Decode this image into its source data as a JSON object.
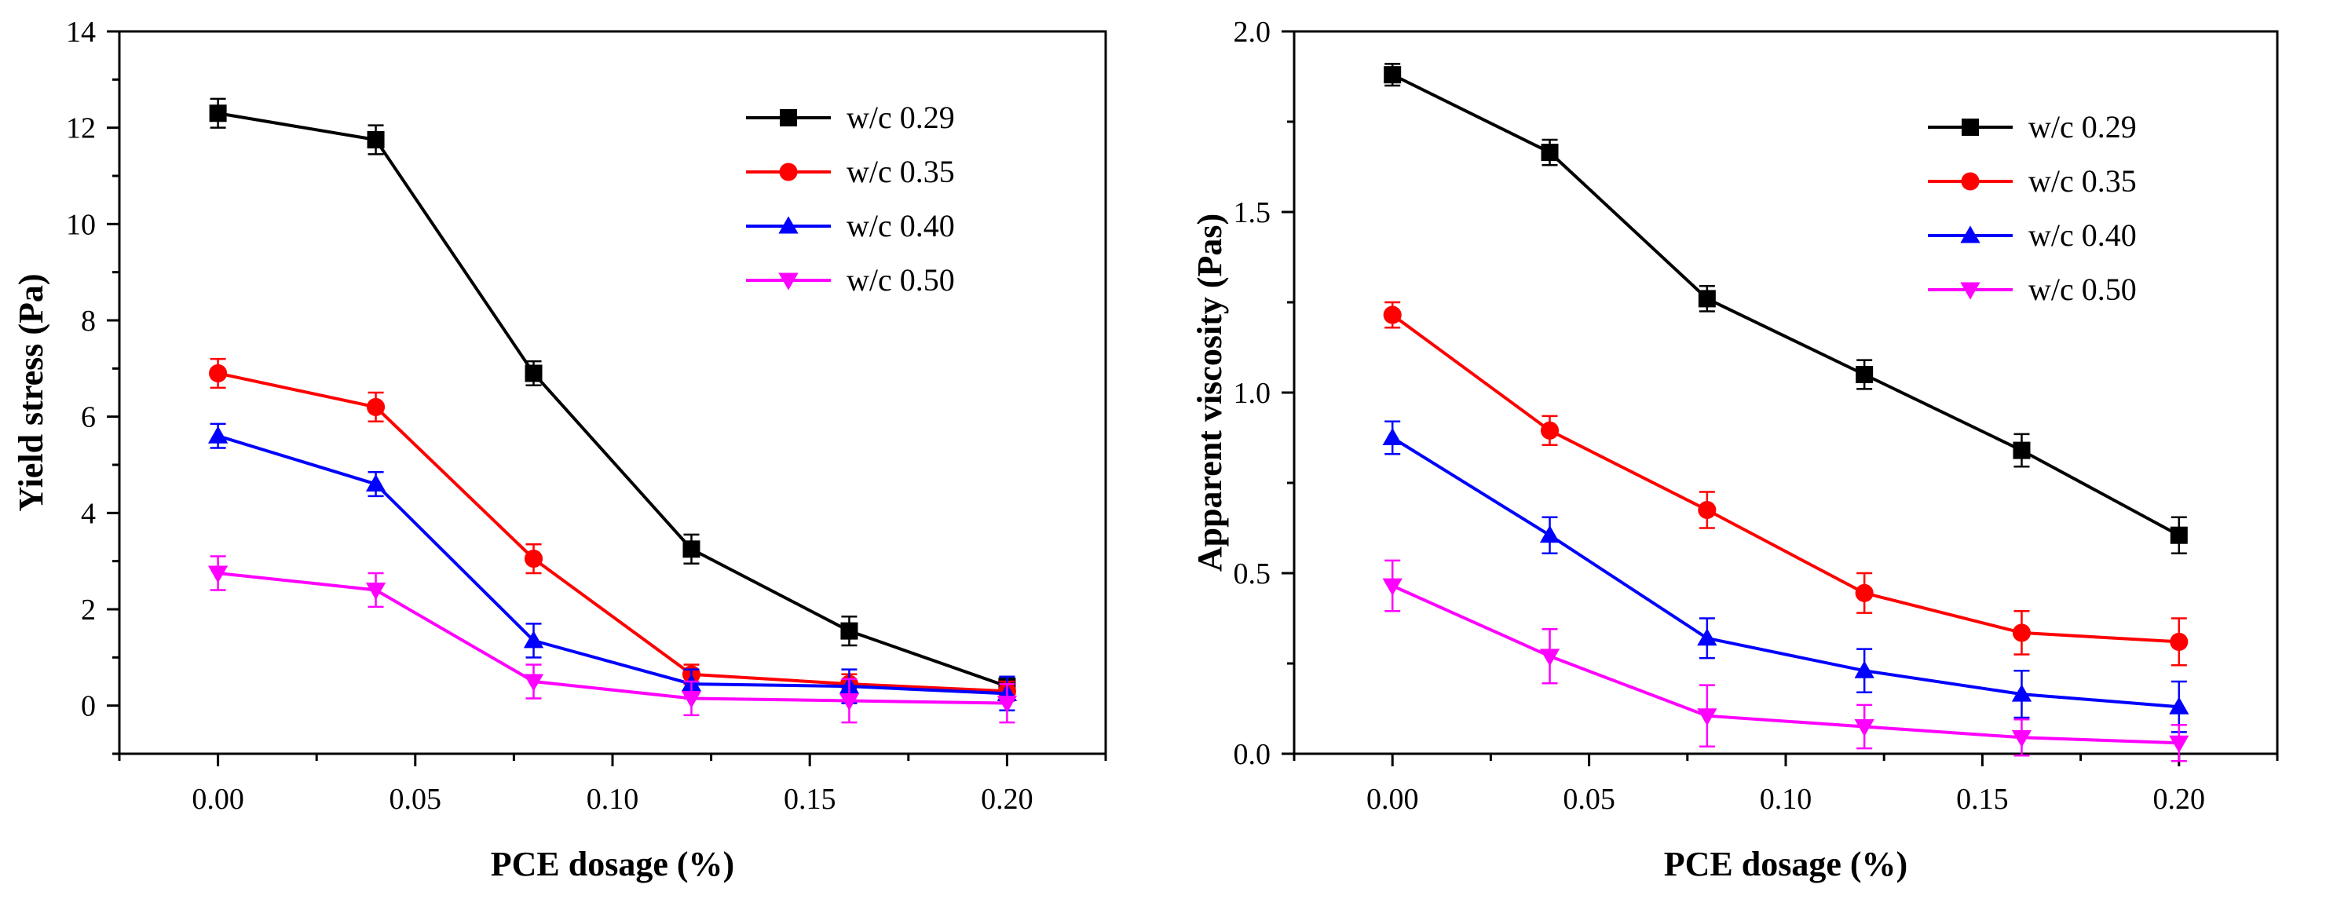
{
  "chart_data": [
    {
      "type": "line",
      "title": "",
      "xlabel": "PCE dosage (%)",
      "ylabel": "Yield stress (Pa)",
      "xlim": [
        -0.025,
        0.225
      ],
      "ylim": [
        -1,
        14
      ],
      "xticks": [
        0.0,
        0.05,
        0.1,
        0.15,
        0.2
      ],
      "xtick_labels": [
        "0.00",
        "0.05",
        "0.10",
        "0.15",
        "0.20"
      ],
      "yticks": [
        0,
        2,
        4,
        6,
        8,
        10,
        12,
        14
      ],
      "ytick_labels": [
        "0",
        "2",
        "4",
        "6",
        "8",
        "10",
        "12",
        "14"
      ],
      "legend_position": "top-right",
      "x": [
        0.0,
        0.04,
        0.08,
        0.12,
        0.16,
        0.2
      ],
      "series": [
        {
          "name": "w/c 0.29",
          "color": "#000000",
          "marker": "square",
          "values": [
            12.3,
            11.75,
            6.9,
            3.25,
            1.55,
            0.4
          ],
          "errors": [
            0.3,
            0.3,
            0.25,
            0.3,
            0.3,
            0.2
          ]
        },
        {
          "name": "w/c 0.35",
          "color": "#ff0000",
          "marker": "circle",
          "values": [
            6.9,
            6.2,
            3.05,
            0.65,
            0.45,
            0.3
          ],
          "errors": [
            0.3,
            0.3,
            0.3,
            0.2,
            0.2,
            0.2
          ]
        },
        {
          "name": "w/c 0.40",
          "color": "#0000ff",
          "marker": "triangle-up",
          "values": [
            5.6,
            4.6,
            1.35,
            0.45,
            0.4,
            0.25
          ],
          "errors": [
            0.25,
            0.25,
            0.35,
            0.3,
            0.35,
            0.35
          ]
        },
        {
          "name": "w/c 0.50",
          "color": "#ff00ff",
          "marker": "triangle-down",
          "values": [
            2.75,
            2.4,
            0.5,
            0.15,
            0.1,
            0.05
          ],
          "errors": [
            0.35,
            0.35,
            0.35,
            0.35,
            0.45,
            0.4
          ]
        }
      ]
    },
    {
      "type": "line",
      "title": "",
      "xlabel": "PCE dosage (%)",
      "ylabel": "Apparent viscosity (Pas)",
      "xlim": [
        -0.025,
        0.225
      ],
      "ylim": [
        0,
        2.0
      ],
      "xticks": [
        0.0,
        0.05,
        0.1,
        0.15,
        0.2
      ],
      "xtick_labels": [
        "0.00",
        "0.05",
        "0.10",
        "0.15",
        "0.20"
      ],
      "yticks": [
        0,
        0.5,
        1.0,
        1.5,
        2.0
      ],
      "ytick_labels": [
        "0.0",
        "0.5",
        "1.0",
        "1.5",
        "2.0"
      ],
      "legend_position": "top-right",
      "x": [
        0.0,
        0.04,
        0.08,
        0.12,
        0.16,
        0.2
      ],
      "series": [
        {
          "name": "w/c 0.29",
          "color": "#000000",
          "marker": "square",
          "values": [
            1.88,
            1.665,
            1.26,
            1.05,
            0.84,
            0.605
          ],
          "errors": [
            0.03,
            0.035,
            0.035,
            0.04,
            0.045,
            0.05
          ]
        },
        {
          "name": "w/c 0.35",
          "color": "#ff0000",
          "marker": "circle",
          "values": [
            1.215,
            0.895,
            0.675,
            0.445,
            0.335,
            0.31
          ],
          "errors": [
            0.035,
            0.04,
            0.05,
            0.055,
            0.06,
            0.065
          ]
        },
        {
          "name": "w/c 0.40",
          "color": "#0000ff",
          "marker": "triangle-up",
          "values": [
            0.875,
            0.605,
            0.32,
            0.23,
            0.165,
            0.13
          ],
          "errors": [
            0.045,
            0.05,
            0.055,
            0.06,
            0.065,
            0.07
          ]
        },
        {
          "name": "w/c 0.50",
          "color": "#ff00ff",
          "marker": "triangle-down",
          "values": [
            0.465,
            0.27,
            0.105,
            0.075,
            0.045,
            0.03
          ],
          "errors": [
            0.07,
            0.075,
            0.085,
            0.06,
            0.05,
            0.05
          ]
        }
      ]
    }
  ]
}
